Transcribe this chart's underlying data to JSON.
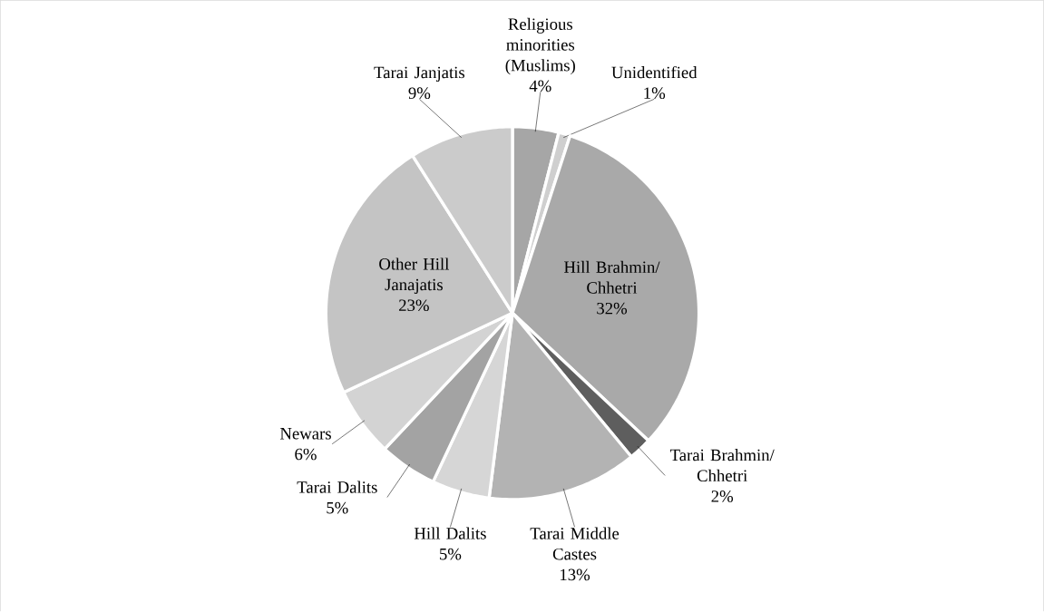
{
  "chart_data": {
    "type": "pie",
    "categories": [
      "Religious minorities (Muslims)",
      "Unidentified",
      "Hill Brahmin/ Chhetri",
      "Tarai Brahmin/ Chhetri",
      "Tarai Middle Castes",
      "Hill Dalits",
      "Tarai Dalits",
      "Newars",
      "Other Hill Janajatis",
      "Tarai Janjatis"
    ],
    "values": [
      4,
      1,
      32,
      2,
      13,
      5,
      5,
      6,
      23,
      9
    ],
    "value_labels": [
      "4%",
      "1%",
      "32%",
      "2%",
      "13%",
      "5%",
      "5%",
      "6%",
      "23%",
      "9%"
    ],
    "colors": [
      "#a6a6a6",
      "#cfcfcf",
      "#a9a9a9",
      "#5e5e5e",
      "#b3b3b3",
      "#d6d6d6",
      "#a3a3a3",
      "#d3d3d3",
      "#c4c4c4",
      "#cbcbcb"
    ]
  }
}
